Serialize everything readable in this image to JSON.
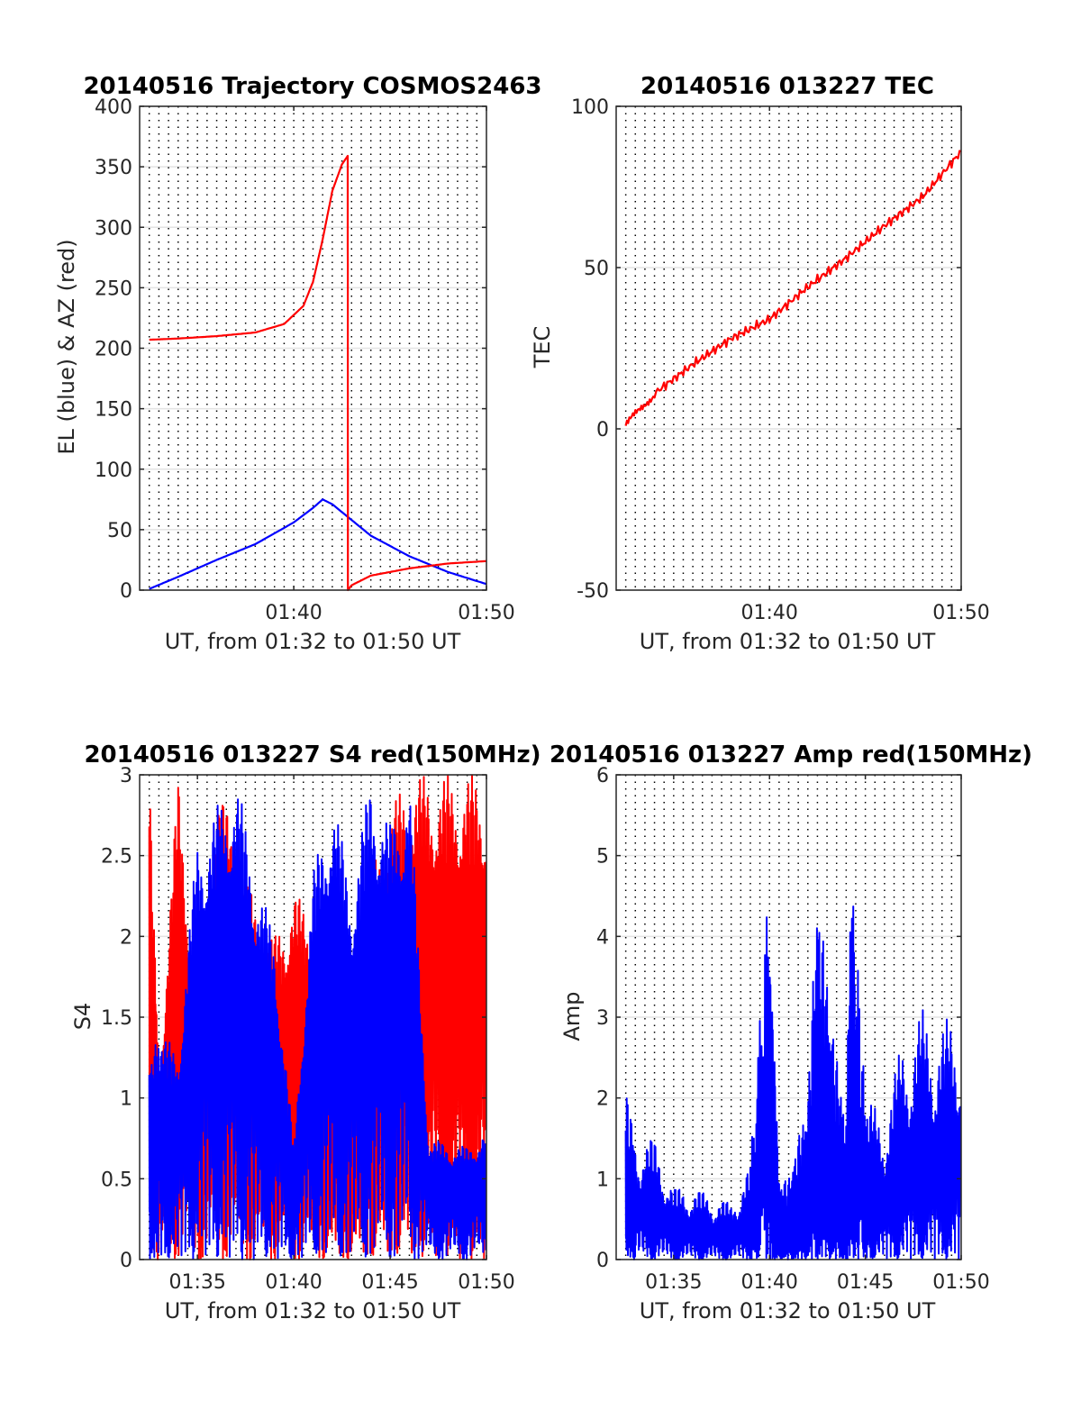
{
  "chart_data": [
    {
      "type": "line",
      "title": "20140516 Trajectory COSMOS2463",
      "xlabel": "UT, from 01:32 to 01:50 UT",
      "ylabel": "EL (blue) & AZ (red)",
      "xlim": [
        "01:32",
        "01:50"
      ],
      "ylim": [
        0,
        400
      ],
      "xticks": [
        "01:40",
        "01:50"
      ],
      "yticks": [
        0,
        50,
        100,
        150,
        200,
        250,
        300,
        350,
        400
      ],
      "grid": "vertical dotted every 0.5 min, horizontal light at y ticks",
      "series": [
        {
          "color": "#0000ff",
          "x": [
            "01:32.5",
            "01:34",
            "01:36",
            "01:38",
            "01:40",
            "01:41",
            "01:41.5",
            "01:42",
            "01:43",
            "01:44",
            "01:46",
            "01:48",
            "01:50"
          ],
          "y": [
            1,
            11,
            25,
            38,
            56,
            68,
            75,
            71,
            58,
            45,
            28,
            15,
            5
          ]
        },
        {
          "color": "#ff0000",
          "x": [
            "01:32.5",
            "01:34",
            "01:36",
            "01:38",
            "01:39.5",
            "01:40.5",
            "01:41",
            "01:41.5",
            "01:42",
            "01:42.5",
            "01:42.8",
            "01:42.81",
            "01:43",
            "01:44",
            "01:46",
            "01:48",
            "01:50"
          ],
          "y": [
            207,
            208,
            210,
            213,
            220,
            235,
            255,
            290,
            330,
            352,
            359,
            0,
            4,
            12,
            18,
            22,
            24
          ]
        }
      ]
    },
    {
      "type": "line",
      "title": "20140516 013227 TEC",
      "xlabel": "UT, from 01:32 to 01:50 UT",
      "ylabel": "TEC",
      "xlim": [
        "01:32",
        "01:50"
      ],
      "ylim": [
        -50,
        100
      ],
      "xticks": [
        "01:40",
        "01:50"
      ],
      "yticks": [
        -50,
        0,
        50,
        100
      ],
      "series": [
        {
          "color": "#ff0000",
          "x": [
            "01:32.5",
            "01:34",
            "01:36",
            "01:38",
            "01:40",
            "01:42",
            "01:44",
            "01:46",
            "01:48",
            "01:50"
          ],
          "y": [
            1,
            11,
            20,
            28,
            34,
            44,
            53,
            63,
            72,
            86
          ]
        }
      ]
    },
    {
      "type": "line",
      "title": "20140516 013227 S4 red(150MHz)",
      "xlabel": "UT, from 01:32 to 01:50 UT",
      "ylabel": "S4",
      "xlim": [
        "01:32",
        "01:50"
      ],
      "ylim": [
        0,
        3
      ],
      "xticks": [
        "01:35",
        "01:40",
        "01:45",
        "01:50"
      ],
      "yticks": [
        0,
        0.5,
        1,
        1.5,
        2,
        2.5,
        3
      ],
      "series": [
        {
          "color": "#ff0000",
          "x": [
            "01:32.5",
            "01:33",
            "01:34",
            "01:35",
            "01:36",
            "01:37",
            "01:38",
            "01:39",
            "01:40",
            "01:41",
            "01:42",
            "01:43",
            "01:44",
            "01:45",
            "01:46",
            "01:47",
            "01:48",
            "01:49",
            "01:50"
          ],
          "y": [
            3,
            1.2,
            3,
            1.6,
            3,
            2.6,
            2.2,
            2,
            2.3,
            2.1,
            1.5,
            1.3,
            2.4,
            2.8,
            3,
            3,
            3,
            3,
            3
          ]
        },
        {
          "color": "#0000ff",
          "x": [
            "01:32.5",
            "01:33",
            "01:34",
            "01:35",
            "01:36",
            "01:37",
            "01:38",
            "01:39",
            "01:40",
            "01:41",
            "01:42",
            "01:43",
            "01:44",
            "01:45",
            "01:46",
            "01:47",
            "01:48",
            "01:49",
            "01:50"
          ],
          "y": [
            1.2,
            1.4,
            1.3,
            2.6,
            2.8,
            3,
            2.4,
            2,
            0.7,
            2.4,
            2.9,
            2.3,
            3,
            2.7,
            3,
            0.75,
            0.72,
            0.7,
            0.8
          ]
        }
      ]
    },
    {
      "type": "line",
      "title": "20140516 013227 Amp red(150MHz)",
      "xlabel": "UT, from 01:32 to 01:50 UT",
      "ylabel": "Amp",
      "xlim": [
        "01:32",
        "01:50"
      ],
      "ylim": [
        0,
        6
      ],
      "xticks": [
        "01:35",
        "01:40",
        "01:45",
        "01:50"
      ],
      "yticks": [
        0,
        1,
        2,
        3,
        4,
        5,
        6
      ],
      "series": [
        {
          "color": "#0000ff",
          "x": [
            "01:32.5",
            "01:33",
            "01:34",
            "01:35",
            "01:36",
            "01:37",
            "01:38",
            "01:39",
            "01:39.9",
            "01:40.5",
            "01:41",
            "01:41.5",
            "01:42",
            "01:42.5",
            "01:43",
            "01:43.5",
            "01:44",
            "01:44.3",
            "01:45",
            "01:46",
            "01:47",
            "01:48",
            "01:49",
            "01:50"
          ],
          "y": [
            2.1,
            1.6,
            1.5,
            0.9,
            0.9,
            0.8,
            0.7,
            1.2,
            4.7,
            1.0,
            1.0,
            1.5,
            2.0,
            4.7,
            3.5,
            2.5,
            1.8,
            5.1,
            2.0,
            1.8,
            2.8,
            3.1,
            2.9,
            3.2
          ]
        }
      ]
    }
  ]
}
